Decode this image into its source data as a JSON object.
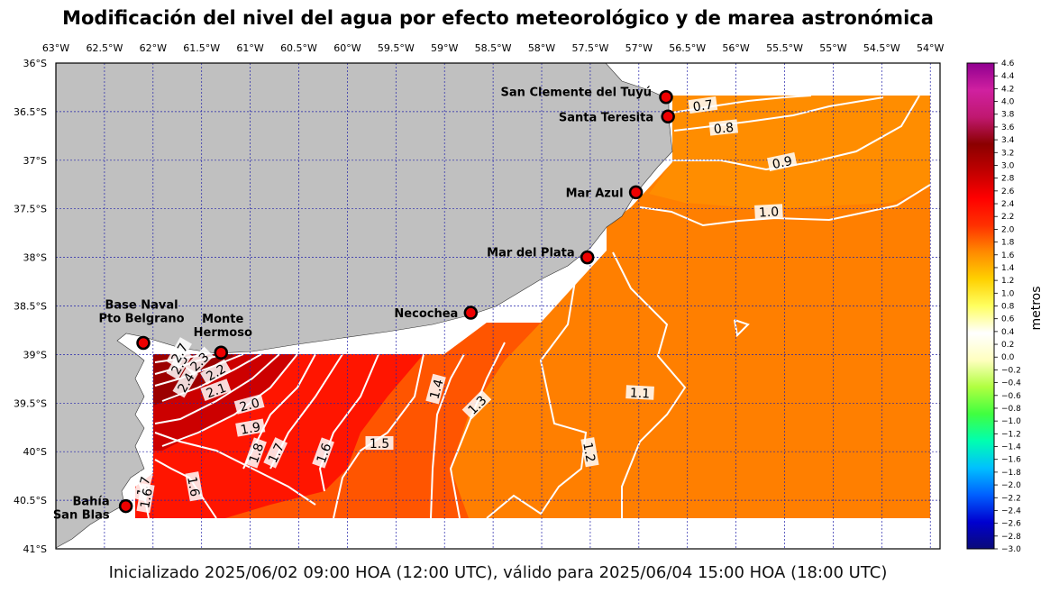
{
  "title": "Modificación del nivel del agua por efecto meteorológico y de marea astronómica",
  "footer": "Inicializado 2025/06/02 09:00 HOA (12:00 UTC), válido para 2025/06/04 15:00 HOA (18:00 UTC)",
  "map": {
    "lon_ticks": [
      "63°W",
      "62.5°W",
      "62°W",
      "61.5°W",
      "61°W",
      "60.5°W",
      "60°W",
      "59.5°W",
      "59°W",
      "58.5°W",
      "58°W",
      "57.5°W",
      "57°W",
      "56.5°W",
      "56°W",
      "55.5°W",
      "55°W",
      "54.5°W",
      "54°W"
    ],
    "lat_ticks": [
      "36°S",
      "36.5°S",
      "37°S",
      "37.5°S",
      "38°S",
      "38.5°S",
      "39°S",
      "39.5°S",
      "40°S",
      "40.5°S",
      "41°S"
    ],
    "land_color": "#c0c0c0",
    "grid_color": "#2222aa"
  },
  "stations": [
    {
      "name": "San Clemente del Tuyú",
      "lon": -56.72,
      "lat": -36.35
    },
    {
      "name": "Santa Teresita",
      "lon": -56.7,
      "lat": -36.55
    },
    {
      "name": "Mar Azul",
      "lon": -57.03,
      "lat": -37.33
    },
    {
      "name": "Mar del Plata",
      "lon": -57.53,
      "lat": -38.0
    },
    {
      "name": "Necochea",
      "lon": -58.73,
      "lat": -38.57
    },
    {
      "name": "Base Naval Pto Belgrano",
      "label_lines": [
        "Base Naval",
        "Pto Belgrano"
      ],
      "lon": -62.1,
      "lat": -38.88
    },
    {
      "name": "Monte Hermoso",
      "label_lines": [
        "Monte",
        "Hermoso"
      ],
      "lon": -61.3,
      "lat": -38.98
    },
    {
      "name": "Bahía San Blas",
      "label_lines": [
        "Bahía",
        "San Blas"
      ],
      "lon": -62.28,
      "lat": -40.56
    }
  ],
  "contour_labels": [
    "0.7",
    "0.8",
    "0.9",
    "1.0",
    "1.1",
    "1.2",
    "1.3",
    "1.4",
    "1.5",
    "1.6",
    "1.7",
    "1.8",
    "1.9",
    "2.0",
    "2.1",
    "2.2",
    "2.3",
    "2.4",
    "2.5",
    "2.7",
    "1.6",
    "1.7",
    "1.6"
  ],
  "colorbar": {
    "label": "metros",
    "ticks": [
      "4.6",
      "4.4",
      "4.2",
      "4.0",
      "3.8",
      "3.6",
      "3.4",
      "3.2",
      "3.0",
      "2.8",
      "2.6",
      "2.4",
      "2.2",
      "2.0",
      "1.8",
      "1.6",
      "1.4",
      "1.2",
      "1.0",
      "0.8",
      "0.6",
      "0.4",
      "0.2",
      "0.0",
      "−0.2",
      "−0.4",
      "−0.6",
      "−0.8",
      "−1.0",
      "−1.2",
      "−1.4",
      "−1.6",
      "−1.8",
      "−2.0",
      "−2.2",
      "−2.4",
      "−2.6",
      "−2.8",
      "−3.0"
    ],
    "min": -3.0,
    "max": 4.6,
    "colors": [
      "#0a0a78",
      "#0000d0",
      "#0060ff",
      "#00c0ff",
      "#00ffb0",
      "#40ff40",
      "#b0ff40",
      "#ffffc0",
      "#ffffff",
      "#ffff60",
      "#ffd000",
      "#ff8a00",
      "#ff3000",
      "#ff0000",
      "#c00000",
      "#8b0000",
      "#c01870",
      "#d020a0",
      "#900090"
    ]
  }
}
